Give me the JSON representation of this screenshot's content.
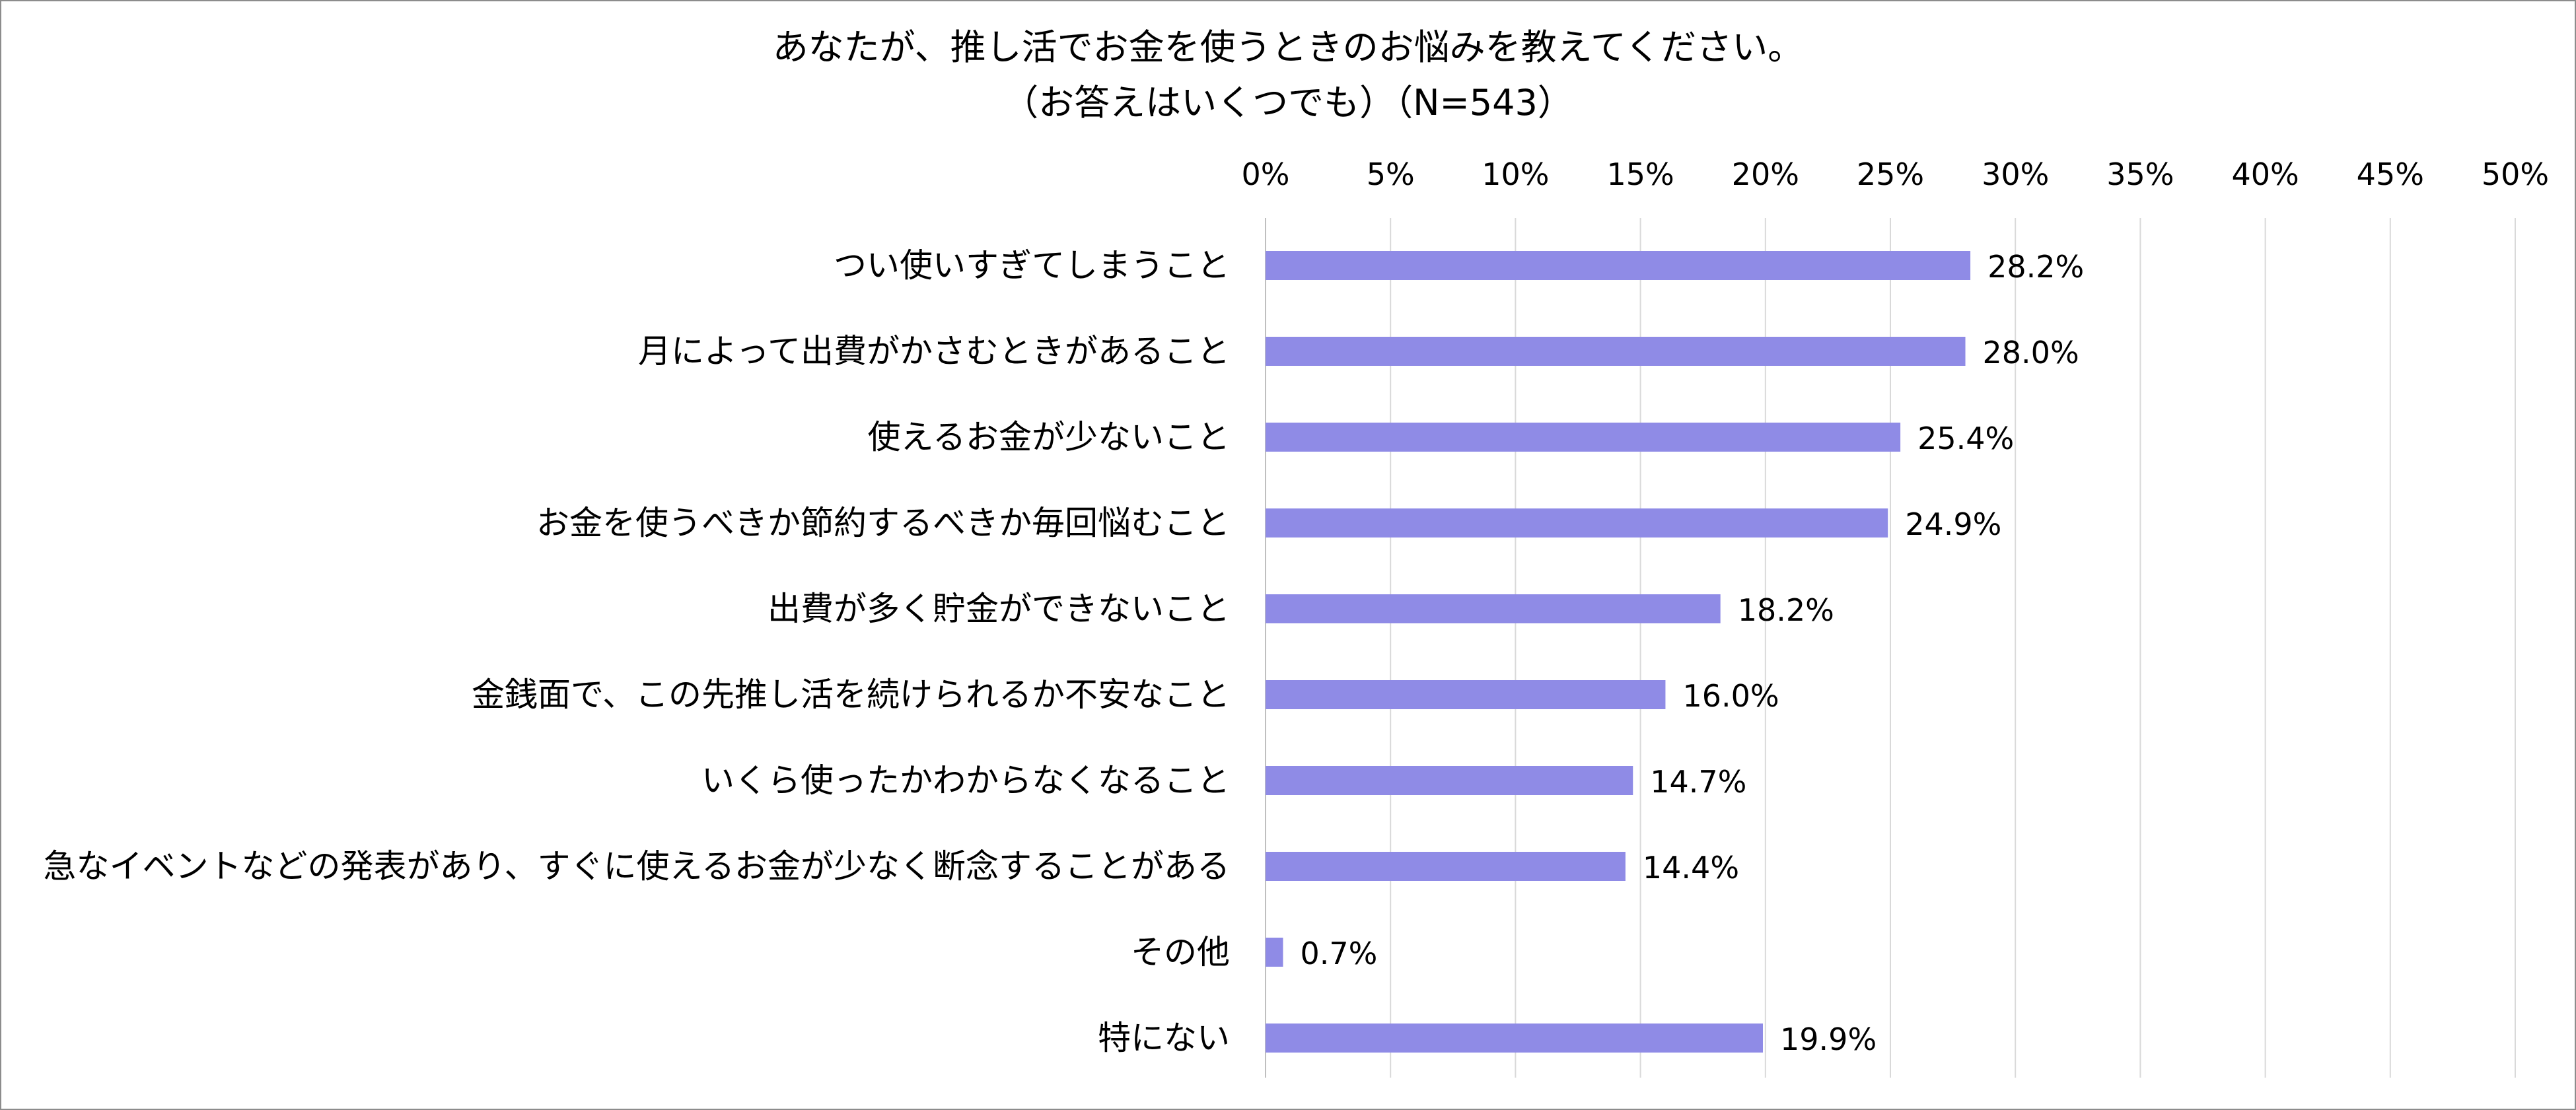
{
  "chart_data": {
    "type": "bar",
    "orientation": "horizontal",
    "title": "あなたが、推し活でお金を使うときのお悩みを教えてください。",
    "subtitle": "（お答えはいくつでも）（N=543）",
    "categories": [
      "つい使いすぎてしまうこと",
      "月によって出費がかさむときがあること",
      "使えるお金が少ないこと",
      "お金を使うべきか節約するべきか毎回悩むこと",
      "出費が多く貯金ができないこと",
      "金銭面で、この先推し活を続けられるか不安なこと",
      "いくら使ったかわからなくなること",
      "急なイベントなどの発表があり、すぐに使えるお金が少なく断念することがある",
      "その他",
      "特にない"
    ],
    "values": [
      28.2,
      28.0,
      25.4,
      24.9,
      18.2,
      16.0,
      14.7,
      14.4,
      0.7,
      19.9
    ],
    "value_labels": [
      "28.2%",
      "28.0%",
      "25.4%",
      "24.9%",
      "18.2%",
      "16.0%",
      "14.7%",
      "14.4%",
      "0.7%",
      "19.9%"
    ],
    "x_ticks": [
      "0%",
      "5%",
      "10%",
      "15%",
      "20%",
      "25%",
      "30%",
      "35%",
      "40%",
      "45%",
      "50%"
    ],
    "xlim": [
      0,
      50
    ],
    "xlabel": "",
    "ylabel": "",
    "grid": true,
    "axis_position": "top",
    "bar_color": "#8F8BE6",
    "grid_color": "#d9d9d9"
  }
}
